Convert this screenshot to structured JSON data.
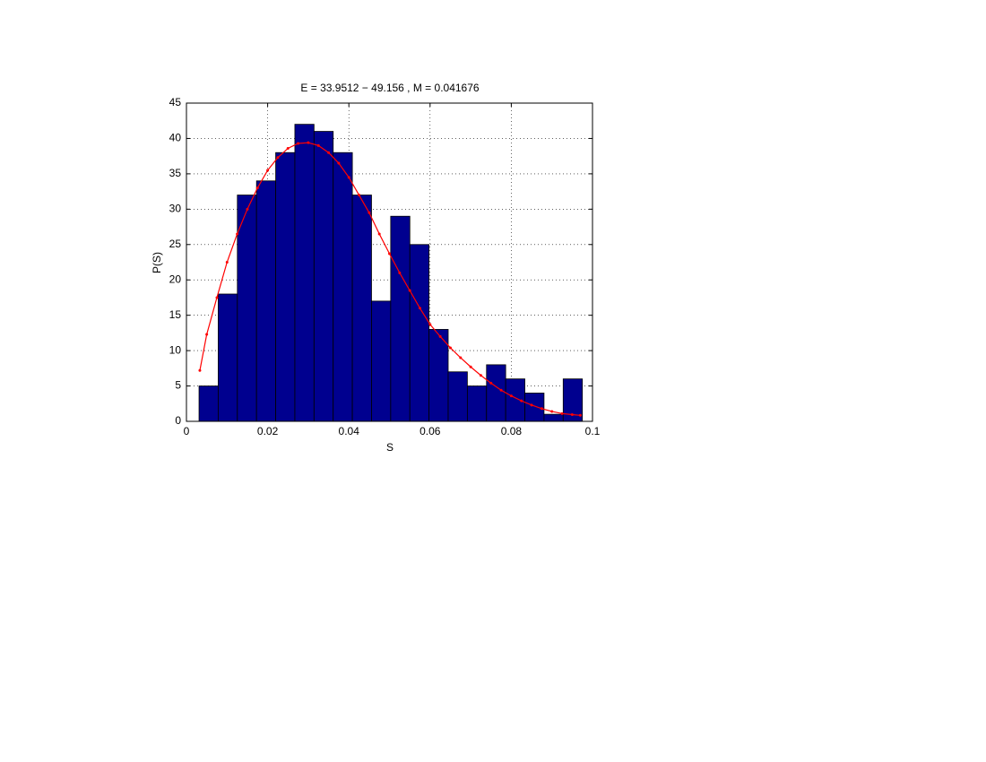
{
  "chart_data": {
    "type": "histogram",
    "title": "E = 33.9512 − 49.156 , M = 0.041676",
    "xlabel": "S",
    "ylabel": "P(S)",
    "bins": [
      0.0031,
      0.00782,
      0.01254,
      0.01726,
      0.02198,
      0.0267,
      0.03142,
      0.03614,
      0.04086,
      0.04558,
      0.0503,
      0.05502,
      0.05974,
      0.06446,
      0.06918,
      0.0739,
      0.07862,
      0.08334,
      0.08806,
      0.09278,
      0.0975
    ],
    "values": [
      5,
      18,
      32,
      34,
      38,
      42,
      41,
      38,
      32,
      17,
      29,
      25,
      13,
      7,
      5,
      8,
      6,
      4,
      1,
      6
    ],
    "color": "#00008f",
    "fit": {
      "color": "#ff0000",
      "x": [
        0.0033,
        0.005,
        0.0075,
        0.01,
        0.0125,
        0.015,
        0.0175,
        0.02,
        0.0225,
        0.025,
        0.0275,
        0.03,
        0.0325,
        0.035,
        0.0375,
        0.04,
        0.0425,
        0.045,
        0.0475,
        0.05,
        0.0525,
        0.055,
        0.0575,
        0.06,
        0.0625,
        0.065,
        0.0675,
        0.07,
        0.0725,
        0.075,
        0.0775,
        0.08,
        0.0825,
        0.085,
        0.0875,
        0.09,
        0.0925,
        0.095,
        0.097
      ],
      "y": [
        7.2,
        12.3,
        17.5,
        22.5,
        26.5,
        30,
        33,
        35.5,
        37.3,
        38.6,
        39.3,
        39.4,
        39,
        38,
        36.5,
        34.5,
        32,
        29.5,
        26.5,
        23.7,
        21,
        18.5,
        16,
        13.7,
        12,
        10.4,
        9,
        7.7,
        6.5,
        5.4,
        4.4,
        3.6,
        2.9,
        2.3,
        1.8,
        1.4,
        1.1,
        0.95,
        0.85
      ]
    },
    "xlim": [
      0,
      0.1
    ],
    "xticks": [
      0,
      0.02,
      0.04,
      0.06,
      0.08,
      0.1
    ],
    "ylim": [
      0,
      45
    ],
    "yticks": [
      0,
      5,
      10,
      15,
      20,
      25,
      30,
      35,
      40,
      45
    ],
    "grid": true
  }
}
